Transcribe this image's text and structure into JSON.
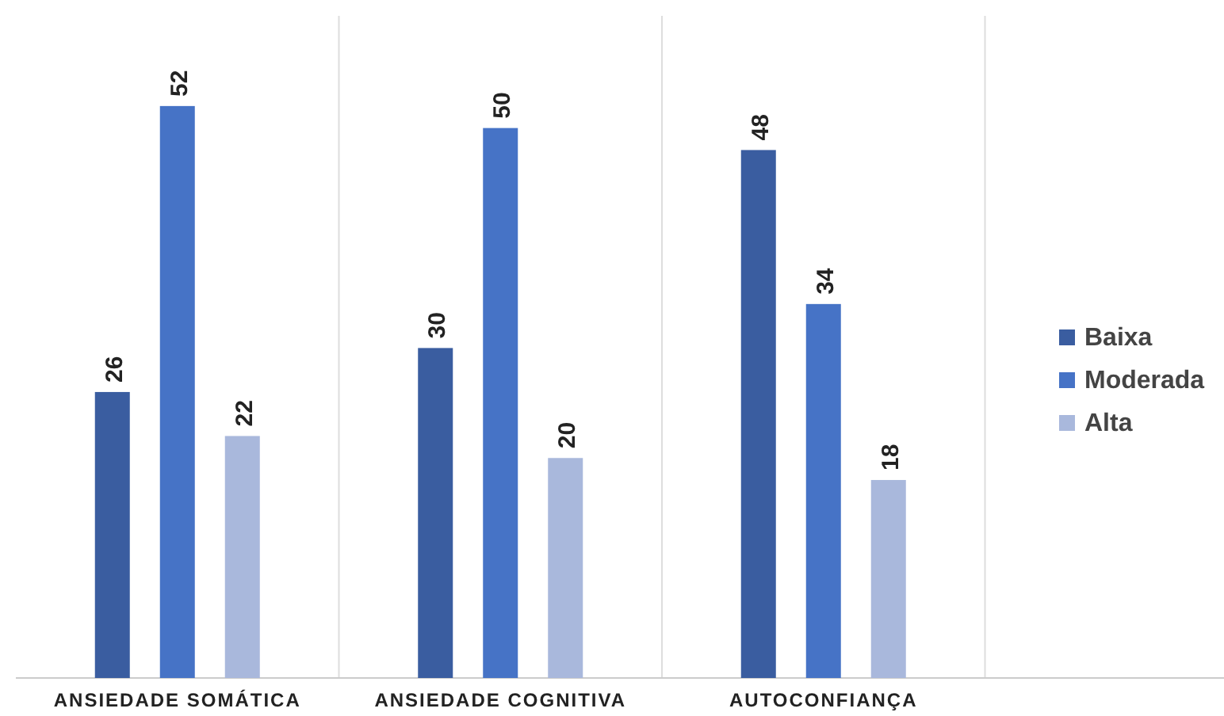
{
  "chart_data": {
    "type": "bar",
    "categories": [
      "ANSIEDADE SOMÁTICA",
      "ANSIEDADE COGNITIVA",
      "AUTOCONFIANÇA",
      null
    ],
    "series": [
      {
        "name": "Baixa",
        "color": "#3a5da0",
        "values": [
          26,
          30,
          48,
          null
        ]
      },
      {
        "name": "Moderada",
        "color": "#4673c6",
        "values": [
          52,
          50,
          34,
          null
        ]
      },
      {
        "name": "Alta",
        "color": "#a9b8dc",
        "values": [
          22,
          20,
          18,
          null
        ]
      }
    ],
    "data_labels": true,
    "legend": "right"
  }
}
